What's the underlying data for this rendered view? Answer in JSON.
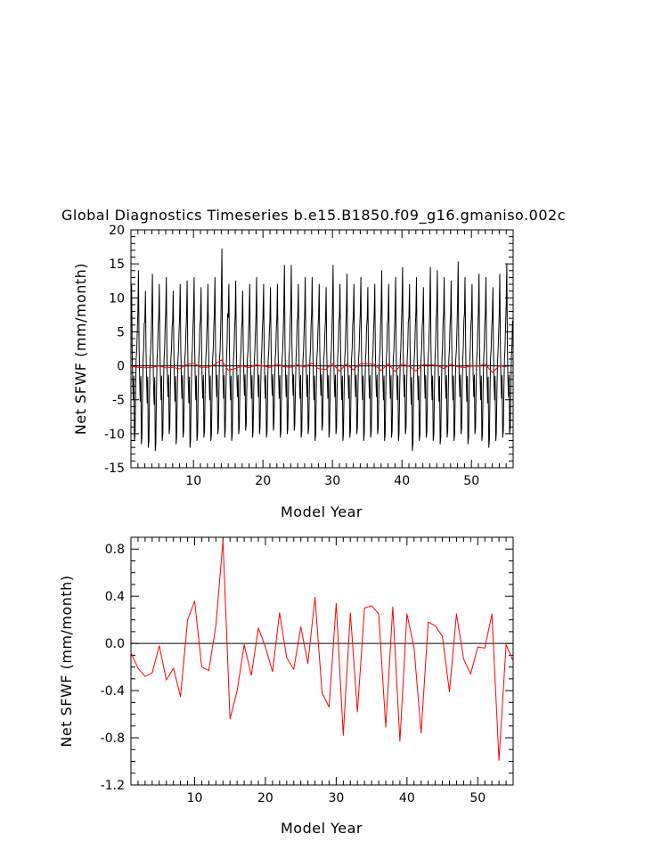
{
  "title": "Global Diagnostics Timeseries b.e15.B1850.f09_g16.gmaniso.002c",
  "chart_data": [
    {
      "type": "line",
      "xlabel": "Model Year",
      "ylabel": "Net SFWF (mm/month)",
      "xlim": [
        1,
        56
      ],
      "ylim": [
        -15,
        20
      ],
      "xticks": [
        10,
        20,
        30,
        40,
        50
      ],
      "xtick_labels": [
        "10",
        "20",
        "30",
        "40",
        "50"
      ],
      "yticks": [
        -15,
        -10,
        -5,
        0,
        5,
        10,
        15,
        20
      ],
      "ytick_labels": [
        "-15",
        "-10",
        "-5",
        "0",
        "5",
        "10",
        "15",
        "20"
      ],
      "zero_line": true,
      "series": [
        {
          "color": "#000000",
          "kind": "monthly",
          "start_year": 1,
          "monthly_annual_cycle": [
            8,
            13.5,
            3,
            -2,
            -5,
            -1.5,
            -11,
            -10,
            -4,
            1,
            2.5,
            6
          ],
          "annual_peaks": [
            12,
            14,
            11,
            13.5,
            12,
            13,
            11,
            12,
            12.5,
            13,
            11.5,
            12,
            13,
            17.2,
            12,
            12.5,
            11,
            12,
            13,
            12,
            11.5,
            12,
            14.8,
            14.8,
            12,
            13,
            13,
            12,
            11.5,
            14.8,
            12,
            13.5,
            12,
            13,
            11.5,
            12,
            14,
            12,
            13,
            14.5,
            12,
            13,
            11.5,
            14.5,
            14,
            13,
            12.5,
            15.3,
            13,
            12,
            13.5,
            13,
            11.5,
            13.5,
            15
          ],
          "annual_troughs": [
            -11,
            -11.5,
            -12,
            -12.5,
            -11,
            -10,
            -11.5,
            -10.5,
            -12,
            -11,
            -10.5,
            -11,
            -10,
            -10.5,
            -11,
            -10,
            -9.5,
            -10.5,
            -10,
            -10.5,
            -9.5,
            -10.5,
            -10,
            -9.5,
            -10.5,
            -10,
            -11,
            -9.5,
            -10.5,
            -10,
            -11,
            -10.5,
            -10,
            -11,
            -10.5,
            -10,
            -11,
            -10.5,
            -11,
            -10,
            -12.5,
            -11,
            -10.5,
            -11,
            -11.5,
            -10.5,
            -11,
            -10,
            -11.5,
            -10,
            -11,
            -12,
            -11,
            -10.5,
            -10
          ]
        },
        {
          "color": "#ff0000",
          "kind": "annual",
          "ref": "annual_means"
        }
      ]
    },
    {
      "type": "line",
      "xlabel": "Model Year",
      "ylabel": "Net SFWF (mm/month)",
      "xlim": [
        1,
        55
      ],
      "ylim": [
        -1.2,
        0.9
      ],
      "xticks": [
        10,
        20,
        30,
        40,
        50
      ],
      "xtick_labels": [
        "10",
        "20",
        "30",
        "40",
        "50"
      ],
      "yticks": [
        -1.2,
        -0.8,
        -0.4,
        0.0,
        0.4,
        0.8
      ],
      "ytick_labels": [
        "-1.2",
        "-0.8",
        "-0.4",
        "0.0",
        "0.4",
        "0.8"
      ],
      "zero_line": true,
      "series": [
        {
          "color": "#ff0000",
          "kind": "annual",
          "ref": "annual_means"
        }
      ]
    }
  ],
  "annual_means": {
    "x": [
      1,
      2,
      3,
      4,
      5,
      6,
      7,
      8,
      9,
      10,
      11,
      12,
      13,
      14,
      15,
      16,
      17,
      18,
      19,
      20,
      21,
      22,
      23,
      24,
      25,
      26,
      27,
      28,
      29,
      30,
      31,
      32,
      33,
      34,
      35,
      36,
      37,
      38,
      39,
      40,
      41,
      42,
      43,
      44,
      45,
      46,
      47,
      48,
      49,
      50,
      51,
      52,
      53,
      54,
      55
    ],
    "y": [
      -0.08,
      -0.21,
      -0.28,
      -0.25,
      -0.02,
      -0.31,
      -0.21,
      -0.45,
      0.2,
      0.36,
      -0.2,
      -0.23,
      0.15,
      0.87,
      -0.64,
      -0.4,
      -0.01,
      -0.27,
      0.13,
      -0.03,
      -0.24,
      0.26,
      -0.12,
      -0.22,
      0.14,
      -0.17,
      0.39,
      -0.42,
      -0.54,
      0.34,
      -0.78,
      0.26,
      -0.58,
      0.3,
      0.32,
      0.25,
      -0.71,
      0.31,
      -0.83,
      0.25,
      -0.04,
      -0.76,
      0.18,
      0.15,
      0.06,
      -0.41,
      0.25,
      -0.13,
      -0.26,
      -0.03,
      -0.04,
      0.25,
      -0.99,
      -0.01,
      -0.15
    ]
  }
}
